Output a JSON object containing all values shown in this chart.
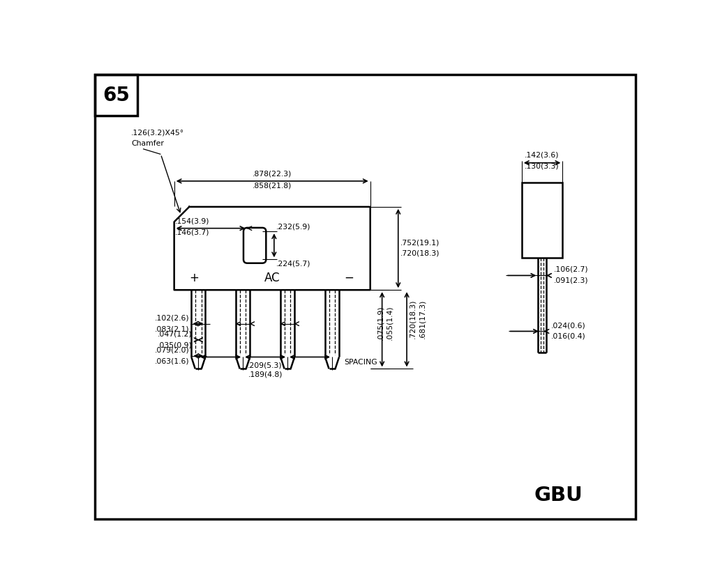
{
  "bg_color": "#ffffff",
  "line_color": "#000000",
  "fig_width": 10.22,
  "fig_height": 8.44,
  "page_num": "65",
  "part_name": "GBU",
  "chamfer_label1": ".126(3.2)X45°",
  "chamfer_label2": "Chamfer",
  "dim_878": ".878(22.3)",
  "dim_858": ".858(21.8)",
  "dim_154": ".154(3.9)",
  "dim_146": ".146(3.7)",
  "dim_232": ".232(5.9)",
  "dim_224": ".224(5.7)",
  "dim_752": ".752(19.1)",
  "dim_720": ".720(18.3)",
  "dim_102": ".102(2.6)",
  "dim_083": ".083(2.1)",
  "dim_047": ".047(1.2)",
  "dim_035": ".035(0.9)",
  "dim_079": ".079(2.0)",
  "dim_063": ".063(1.6)",
  "dim_075": ".075(1.9)",
  "dim_055": ".055(1.4)",
  "dim_720b": ".720(18.3)",
  "dim_681": ".681(17.3)",
  "dim_209": ".209(5.3)",
  "dim_189": ".189(4.8)",
  "spacing_label": "SPACING",
  "ac_label": "AC",
  "plus_label": "+",
  "minus_label": "−",
  "dim_142": ".142(3.6)",
  "dim_130": ".130(3.3)",
  "dim_106": ".106(2.7)",
  "dim_091": ".091(2.3)",
  "dim_024": ".024(0.6)",
  "dim_016": ".016(0.4)"
}
